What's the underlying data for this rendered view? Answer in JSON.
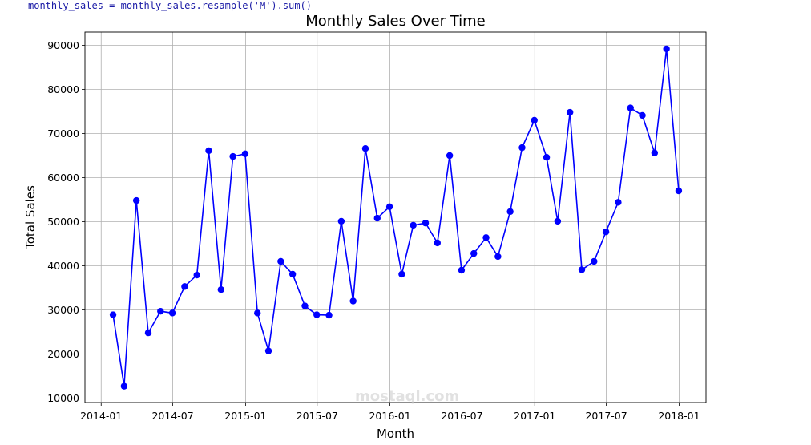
{
  "code_line": "monthly_sales = monthly_sales.resample('M').sum()",
  "watermark": "mostaql.com",
  "chart_data": {
    "type": "line",
    "title": "Monthly Sales Over Time",
    "xlabel": "Month",
    "ylabel": "Total Sales",
    "grid": true,
    "line_color": "#0000ff",
    "marker": "circle",
    "xlim": [
      "2013-11-21",
      "2018-03-10"
    ],
    "ylim": [
      9000,
      93000
    ],
    "x_ticks": [
      "2014-01",
      "2014-07",
      "2015-01",
      "2015-07",
      "2016-01",
      "2016-07",
      "2017-01",
      "2017-07",
      "2018-01"
    ],
    "y_ticks": [
      10000,
      20000,
      30000,
      40000,
      50000,
      60000,
      70000,
      80000,
      90000
    ],
    "x": [
      "2014-01-31",
      "2014-02-28",
      "2014-03-31",
      "2014-04-30",
      "2014-05-31",
      "2014-06-30",
      "2014-07-31",
      "2014-08-31",
      "2014-09-30",
      "2014-10-31",
      "2014-11-30",
      "2014-12-31",
      "2015-01-31",
      "2015-02-28",
      "2015-03-31",
      "2015-04-30",
      "2015-05-31",
      "2015-06-30",
      "2015-07-31",
      "2015-08-31",
      "2015-09-30",
      "2015-10-31",
      "2015-11-30",
      "2015-12-31",
      "2016-01-31",
      "2016-02-29",
      "2016-03-31",
      "2016-04-30",
      "2016-05-31",
      "2016-06-30",
      "2016-07-31",
      "2016-08-31",
      "2016-09-30",
      "2016-10-31",
      "2016-11-30",
      "2016-12-31",
      "2017-01-31",
      "2017-02-28",
      "2017-03-31",
      "2017-04-30",
      "2017-05-31",
      "2017-06-30",
      "2017-07-31",
      "2017-08-31",
      "2017-09-30",
      "2017-10-31",
      "2017-11-30",
      "2017-12-31"
    ],
    "values": [
      28900,
      12700,
      54800,
      24800,
      29700,
      29300,
      35300,
      37900,
      66100,
      34600,
      64800,
      65400,
      29300,
      20700,
      41000,
      38100,
      30900,
      28900,
      28800,
      50100,
      32000,
      66600,
      50800,
      53400,
      38100,
      49200,
      49700,
      45200,
      65000,
      39000,
      42800,
      46400,
      42100,
      52300,
      66800,
      73000,
      64600,
      50100,
      74800,
      39100,
      41000,
      47700,
      54400,
      75800,
      74100,
      65600,
      89200,
      57000
    ]
  }
}
